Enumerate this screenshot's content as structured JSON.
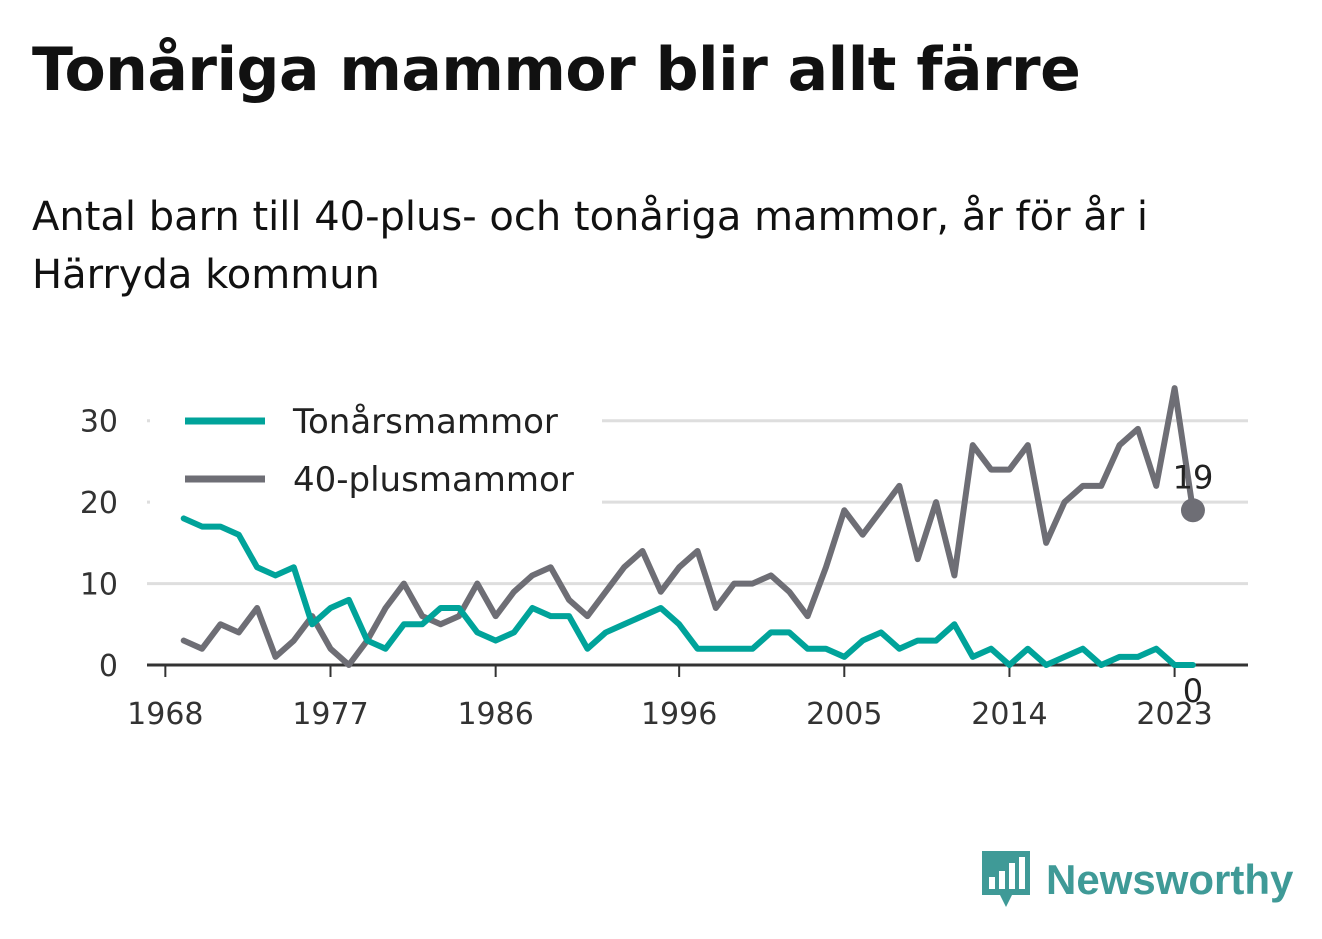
{
  "title": "Tonåriga mammor blir allt färre",
  "subtitle": "Antal barn till 40-plus- och tonåriga mammor, år för år i Härryda kommun",
  "brand": {
    "name": "Newsworthy",
    "icon": "newsworthy-logo-icon",
    "color": "#3f9a97"
  },
  "chart_data": {
    "type": "line",
    "x": [
      1969,
      1970,
      1971,
      1972,
      1973,
      1974,
      1975,
      1976,
      1977,
      1978,
      1979,
      1980,
      1981,
      1982,
      1983,
      1984,
      1985,
      1986,
      1987,
      1988,
      1989,
      1990,
      1991,
      1992,
      1993,
      1994,
      1995,
      1996,
      1997,
      1998,
      1999,
      2000,
      2001,
      2002,
      2003,
      2004,
      2005,
      2006,
      2007,
      2008,
      2009,
      2010,
      2011,
      2012,
      2013,
      2014,
      2015,
      2016,
      2017,
      2018,
      2019,
      2020,
      2021,
      2022,
      2023,
      2024
    ],
    "series": [
      {
        "name": "Tonårsmammor",
        "color": "#00a39a",
        "values": [
          18,
          17,
          17,
          16,
          12,
          11,
          12,
          5,
          7,
          8,
          3,
          2,
          5,
          5,
          7,
          7,
          4,
          3,
          4,
          7,
          6,
          6,
          2,
          4,
          5,
          6,
          7,
          5,
          2,
          2,
          2,
          2,
          4,
          4,
          2,
          2,
          1,
          3,
          4,
          2,
          3,
          3,
          5,
          1,
          2,
          0,
          2,
          0,
          1,
          2,
          0,
          1,
          1,
          2,
          0,
          0
        ]
      },
      {
        "name": "40-plusmammor",
        "color": "#6e6e75",
        "values": [
          3,
          2,
          5,
          4,
          7,
          1,
          3,
          6,
          2,
          0,
          3,
          7,
          10,
          6,
          5,
          6,
          10,
          6,
          9,
          11,
          12,
          8,
          6,
          9,
          12,
          14,
          9,
          12,
          14,
          7,
          10,
          10,
          11,
          9,
          6,
          12,
          19,
          16,
          19,
          22,
          13,
          20,
          11,
          27,
          24,
          24,
          27,
          15,
          20,
          22,
          22,
          27,
          29,
          22,
          34,
          19
        ]
      }
    ],
    "end_labels": [
      "19",
      "0"
    ],
    "x_ticks": [
      "1968",
      "1977",
      "1986",
      "1996",
      "2005",
      "2014",
      "2023"
    ],
    "y_ticks": [
      "0",
      "10",
      "20",
      "30"
    ],
    "ylim": [
      0,
      35
    ],
    "xlim": [
      1967,
      2027
    ],
    "grid": true,
    "legend_position": "top-left"
  }
}
